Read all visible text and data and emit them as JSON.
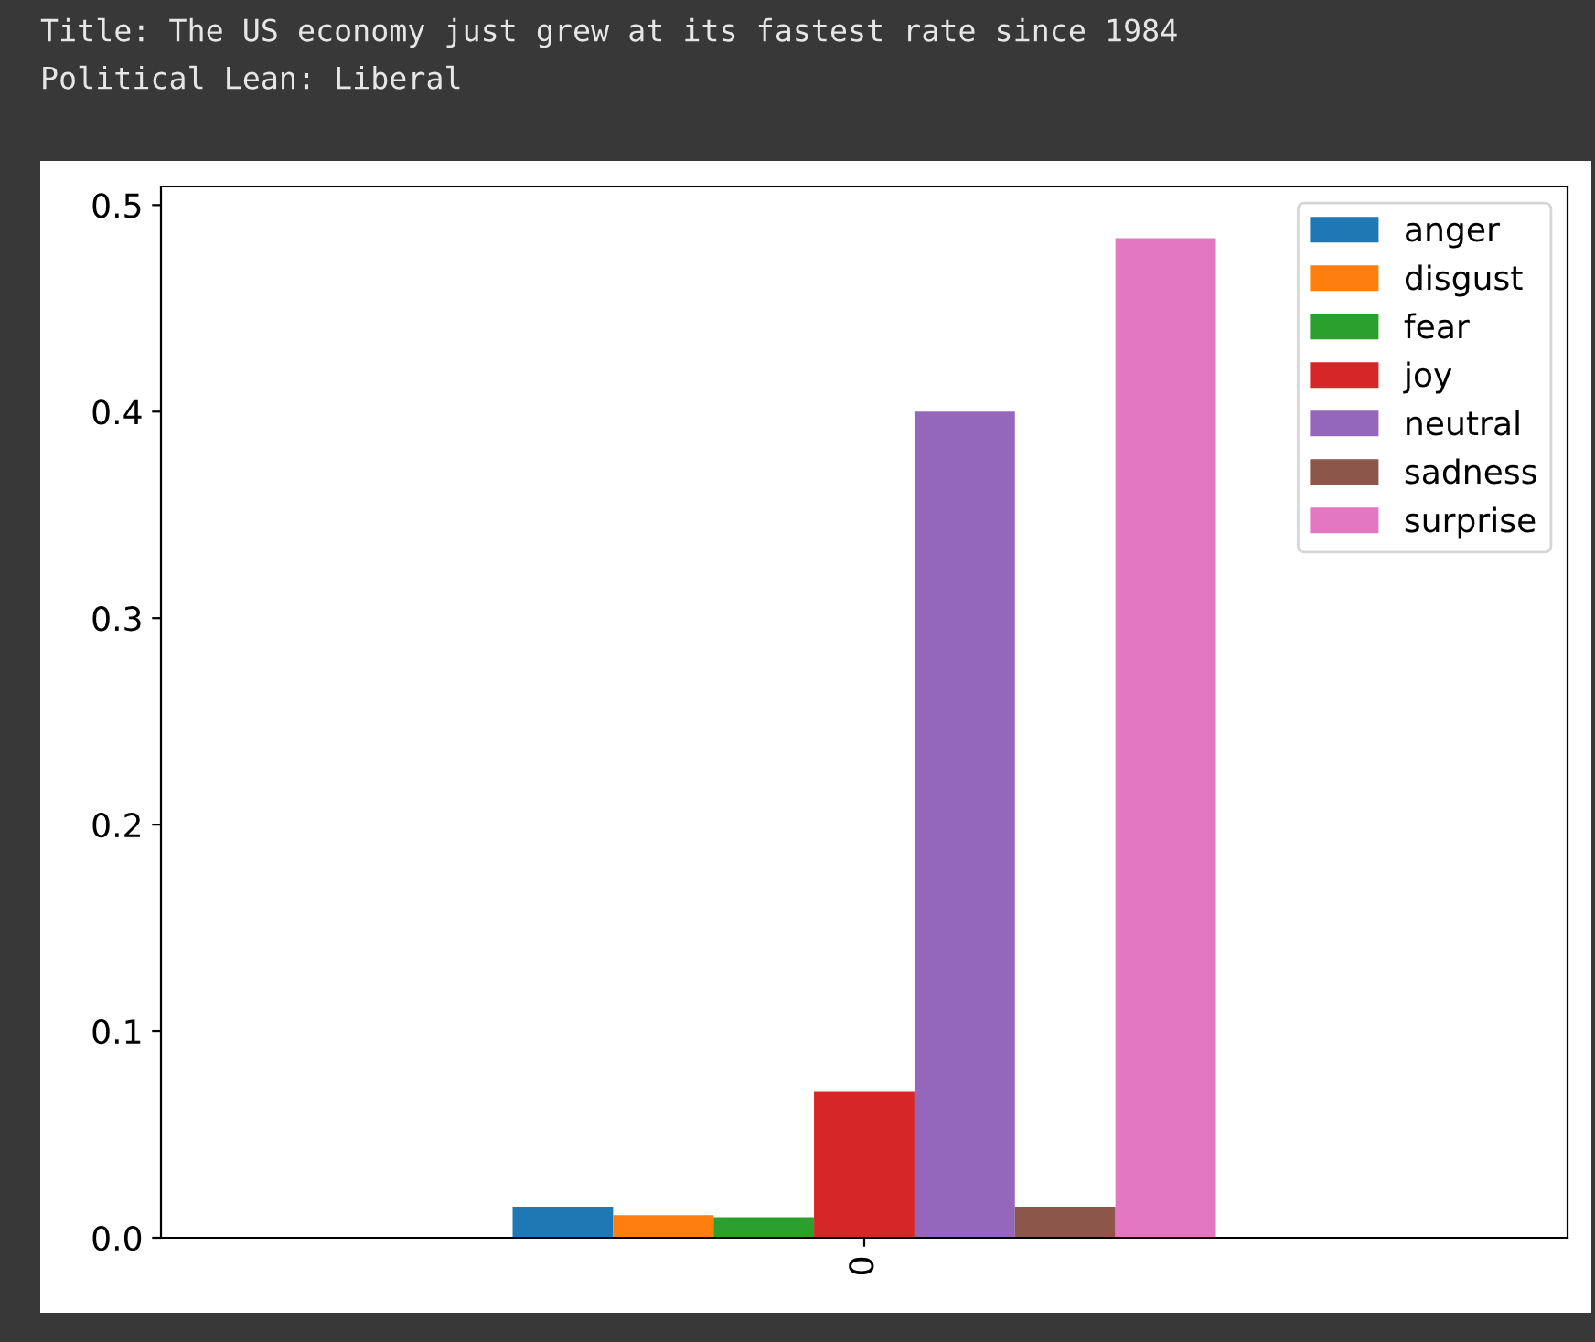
{
  "chart_data": {
    "type": "bar",
    "title": "Title: The US economy just grew at its fastest rate since 1984",
    "subtitle": "Political Lean: Liberal",
    "categories": [
      "0"
    ],
    "series": [
      {
        "name": "anger",
        "color": "#1f77b4",
        "values": [
          0.015
        ]
      },
      {
        "name": "disgust",
        "color": "#ff7f0e",
        "values": [
          0.011
        ]
      },
      {
        "name": "fear",
        "color": "#2ca02c",
        "values": [
          0.01
        ]
      },
      {
        "name": "joy",
        "color": "#d62728",
        "values": [
          0.071
        ]
      },
      {
        "name": "neutral",
        "color": "#9467bd",
        "values": [
          0.4
        ]
      },
      {
        "name": "sadness",
        "color": "#8c564b",
        "values": [
          0.015
        ]
      },
      {
        "name": "surprise",
        "color": "#e377c2",
        "values": [
          0.484
        ]
      }
    ],
    "ylim": [
      0,
      0.509
    ],
    "yticks": [
      {
        "value": 0,
        "label": "0.0"
      },
      {
        "value": 0.1,
        "label": "0.1"
      },
      {
        "value": 0.2,
        "label": "0.2"
      },
      {
        "value": 0.3,
        "label": "0.3"
      },
      {
        "value": 0.4,
        "label": "0.4"
      },
      {
        "value": 0.5,
        "label": "0.5"
      }
    ],
    "legend": "top right",
    "grid": false
  }
}
